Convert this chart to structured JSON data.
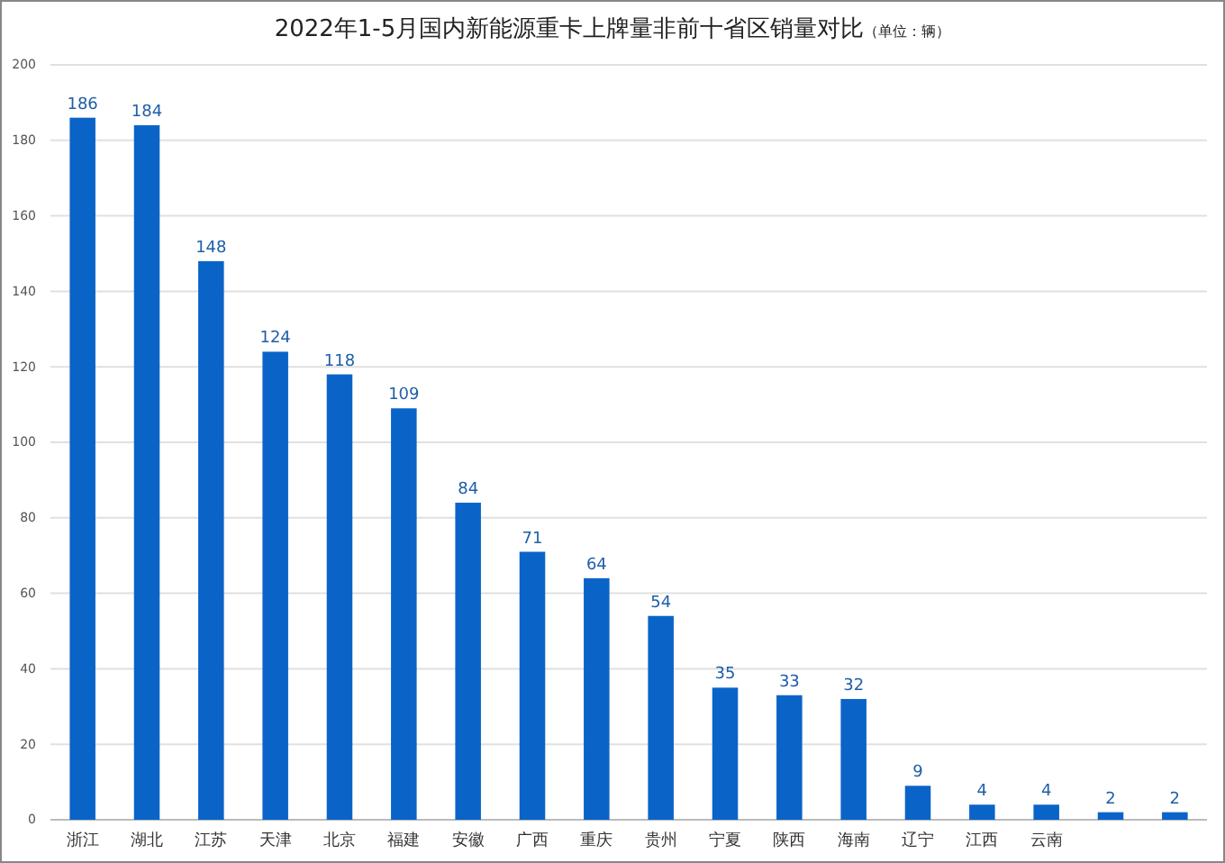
{
  "chart_data": {
    "type": "bar",
    "title": "2022年1-5月国内新能源重卡上牌量非前十省区销量对比",
    "subtitle": "（单位：辆）",
    "categories": [
      "浙江",
      "湖北",
      "江苏",
      "天津",
      "北京",
      "福建",
      "安徽",
      "广西",
      "重庆",
      "贵州",
      "宁夏",
      "陕西",
      "海南",
      "辽宁",
      "江西",
      "云南",
      null,
      null
    ],
    "values": [
      186,
      184,
      148,
      124,
      118,
      109,
      84,
      71,
      64,
      54,
      35,
      33,
      32,
      9,
      4,
      4,
      2,
      2
    ],
    "color": "#0a64c8",
    "ylim": [
      0,
      200
    ],
    "yticks": [
      0,
      20,
      40,
      60,
      80,
      100,
      120,
      140,
      160,
      180,
      200
    ],
    "grid": true,
    "data_labels": true
  }
}
